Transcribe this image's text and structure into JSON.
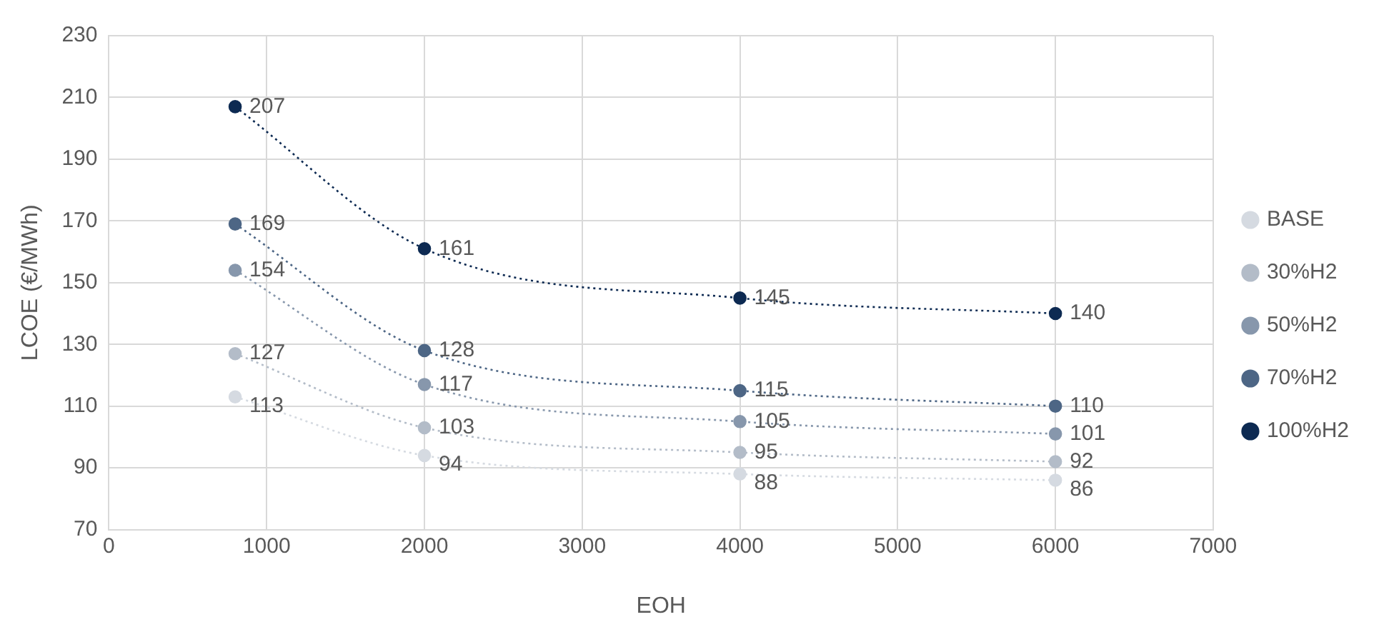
{
  "chart_data": {
    "type": "line",
    "xlabel": "EOH",
    "ylabel": "LCOE (€/MWh)",
    "x": [
      800,
      2000,
      4000,
      6000
    ],
    "series": [
      {
        "name": "BASE",
        "color": "#d5dae1",
        "values": [
          113,
          94,
          88,
          86
        ]
      },
      {
        "name": "30%H2",
        "color": "#b3bcc8",
        "values": [
          127,
          103,
          95,
          92
        ]
      },
      {
        "name": "50%H2",
        "color": "#8797ac",
        "values": [
          154,
          117,
          105,
          101
        ]
      },
      {
        "name": "70%H2",
        "color": "#4d6685",
        "values": [
          169,
          128,
          115,
          110
        ]
      },
      {
        "name": "100%H2",
        "color": "#0d2a52",
        "values": [
          207,
          161,
          145,
          140
        ]
      }
    ],
    "xlim": [
      0,
      7000
    ],
    "xticks": [
      0,
      1000,
      2000,
      3000,
      4000,
      5000,
      6000,
      7000
    ],
    "ylim": [
      70,
      230
    ],
    "yticks": [
      70,
      90,
      110,
      130,
      150,
      170,
      190,
      210,
      230
    ],
    "grid": true,
    "legend": "right",
    "marker": "circle",
    "line_style": "dotted",
    "data_labels": true
  }
}
